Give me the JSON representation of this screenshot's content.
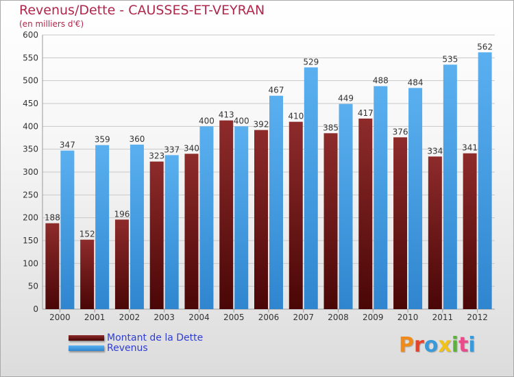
{
  "title": "Revenus/Dette - CAUSSES-ET-VEYRAN",
  "subtitle": "(en milliers d'€)",
  "colors": {
    "dette": "#7b1a1a",
    "revenus": "#3f9ee4",
    "title": "#b0264a",
    "legend_text": "#2e3cd6"
  },
  "legend": [
    {
      "label": "Montant de la Dette",
      "color": "#6b0e0e"
    },
    {
      "label": "Revenus",
      "color": "#3f9ee4"
    }
  ],
  "logo": {
    "text": "Proxiti",
    "letter_colors": [
      "#f08a1a",
      "#e8432a",
      "#3a9ad9",
      "#f2c21c",
      "#5bb33a",
      "#e84a8a",
      "#3a9ad9"
    ]
  },
  "chart_data": {
    "type": "bar",
    "categories": [
      "2000",
      "2001",
      "2002",
      "2003",
      "2004",
      "2005",
      "2006",
      "2007",
      "2008",
      "2009",
      "2010",
      "2011",
      "2012"
    ],
    "series": [
      {
        "name": "Montant de la Dette",
        "values": [
          188,
          152,
          196,
          323,
          340,
          413,
          392,
          410,
          385,
          417,
          376,
          334,
          341
        ]
      },
      {
        "name": "Revenus",
        "values": [
          347,
          359,
          360,
          337,
          400,
          400,
          467,
          529,
          449,
          488,
          484,
          535,
          562
        ]
      }
    ],
    "ylim": [
      0,
      600
    ],
    "yticks": [
      0,
      50,
      100,
      150,
      200,
      250,
      300,
      350,
      400,
      450,
      500,
      550,
      600
    ],
    "grid": true,
    "legend_position": "bottom-left"
  }
}
